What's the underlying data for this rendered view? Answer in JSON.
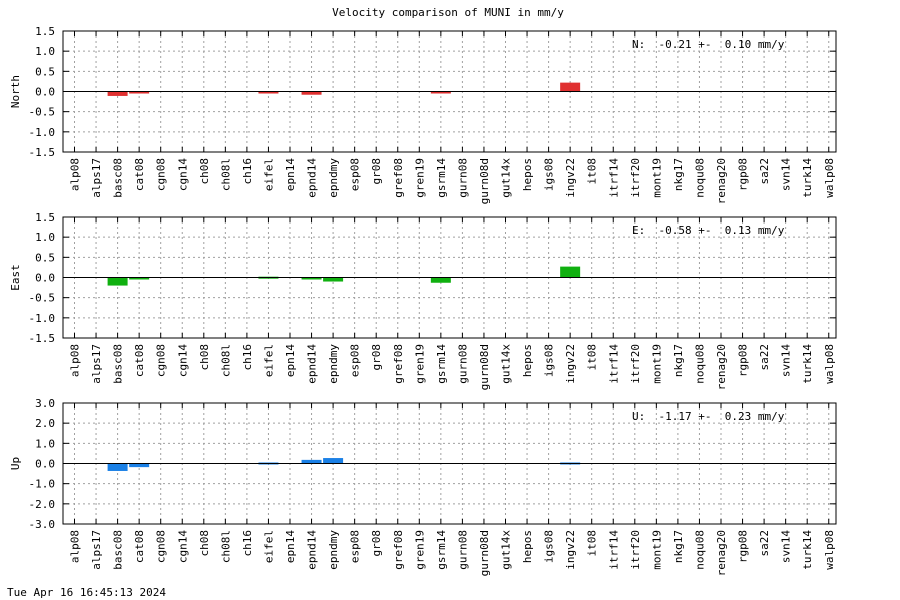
{
  "title": "Velocity comparison of MUNI in mm/y",
  "timestamp": "Tue Apr 16 16:45:13 2024",
  "chart_data": [
    {
      "type": "bar",
      "ylabel": "North",
      "ylim": [
        -1.5,
        1.5
      ],
      "yticks": [
        "1.5",
        "1.0",
        "0.5",
        "0.0",
        "-0.5",
        "-1.0",
        "-1.5"
      ],
      "ytick_values": [
        1.5,
        1.0,
        0.5,
        0.0,
        -0.5,
        -1.0,
        -1.5
      ],
      "annotation": "N:  -0.21 +-  0.10 mm/y",
      "color": "#e03030",
      "grid": true,
      "categories": [
        "alp08",
        "alps17",
        "basc08",
        "cat08",
        "cgn08",
        "cgn14",
        "ch08",
        "ch08l",
        "ch16",
        "eifel",
        "epn14",
        "epnd14",
        "epndmy",
        "esp08",
        "gr08",
        "gref08",
        "gren19",
        "gsrm14",
        "gurn08",
        "gurn08d",
        "gut14x",
        "hepos",
        "igs08",
        "ingv22",
        "it08",
        "itrf14",
        "itrf20",
        "mont19",
        "nkg17",
        "noqu08",
        "renag20",
        "rgp08",
        "sa22",
        "svn14",
        "turk14",
        "walp08"
      ],
      "values": [
        0,
        0,
        -0.11,
        -0.05,
        0,
        0,
        0,
        0,
        0,
        -0.05,
        0,
        -0.08,
        0,
        0,
        0,
        0,
        0,
        -0.03,
        0,
        0,
        0,
        0,
        0,
        0.22,
        0,
        0,
        0,
        0,
        0,
        0,
        0,
        0,
        0,
        0,
        0,
        0
      ]
    },
    {
      "type": "bar",
      "ylabel": "East",
      "ylim": [
        -1.5,
        1.5
      ],
      "yticks": [
        "1.5",
        "1.0",
        "0.5",
        "0.0",
        "-0.5",
        "-1.0",
        "-1.5"
      ],
      "ytick_values": [
        1.5,
        1.0,
        0.5,
        0.0,
        -0.5,
        -1.0,
        -1.5
      ],
      "annotation": "E:  -0.58 +-  0.13 mm/y",
      "color": "#10b010",
      "grid": true,
      "categories": [
        "alp08",
        "alps17",
        "basc08",
        "cat08",
        "cgn08",
        "cgn14",
        "ch08",
        "ch08l",
        "ch16",
        "eifel",
        "epn14",
        "epnd14",
        "epndmy",
        "esp08",
        "gr08",
        "gref08",
        "gren19",
        "gsrm14",
        "gurn08",
        "gurn08d",
        "gut14x",
        "hepos",
        "igs08",
        "ingv22",
        "it08",
        "itrf14",
        "itrf20",
        "mont19",
        "nkg17",
        "noqu08",
        "renag20",
        "rgp08",
        "sa22",
        "svn14",
        "turk14",
        "walp08"
      ],
      "values": [
        0,
        0,
        -0.2,
        -0.03,
        0,
        0,
        0,
        0,
        0,
        0.02,
        0,
        -0.03,
        -0.1,
        0,
        0,
        0,
        0,
        -0.13,
        0,
        0,
        0,
        0,
        0,
        0.27,
        0,
        0,
        0,
        0,
        0,
        0,
        0,
        0,
        0,
        0,
        0,
        0
      ]
    },
    {
      "type": "bar",
      "ylabel": "Up",
      "ylim": [
        -3.0,
        3.0
      ],
      "yticks": [
        "3.0",
        "2.0",
        "1.0",
        "0.0",
        "-1.0",
        "-2.0",
        "-3.0"
      ],
      "ytick_values": [
        3.0,
        2.0,
        1.0,
        0.0,
        -1.0,
        -2.0,
        -3.0
      ],
      "annotation": "U:  -1.17 +-  0.23 mm/y",
      "color": "#1a80e6",
      "grid": true,
      "categories": [
        "alp08",
        "alps17",
        "basc08",
        "cat08",
        "cgn08",
        "cgn14",
        "ch08",
        "ch08l",
        "ch16",
        "eifel",
        "epn14",
        "epnd14",
        "epndmy",
        "esp08",
        "gr08",
        "gref08",
        "gren19",
        "gsrm14",
        "gurn08",
        "gurn08d",
        "gut14x",
        "hepos",
        "igs08",
        "ingv22",
        "it08",
        "itrf14",
        "itrf20",
        "mont19",
        "nkg17",
        "noqu08",
        "renag20",
        "rgp08",
        "sa22",
        "svn14",
        "turk14",
        "walp08"
      ],
      "values": [
        0,
        0,
        -0.37,
        -0.18,
        0,
        0,
        0,
        0,
        0,
        0.05,
        0,
        0.18,
        0.27,
        0,
        0,
        0,
        0,
        0,
        0,
        0,
        0,
        0,
        0,
        0.05,
        0,
        0,
        0,
        0,
        0,
        0,
        0,
        0,
        0,
        0,
        0,
        0
      ]
    }
  ]
}
